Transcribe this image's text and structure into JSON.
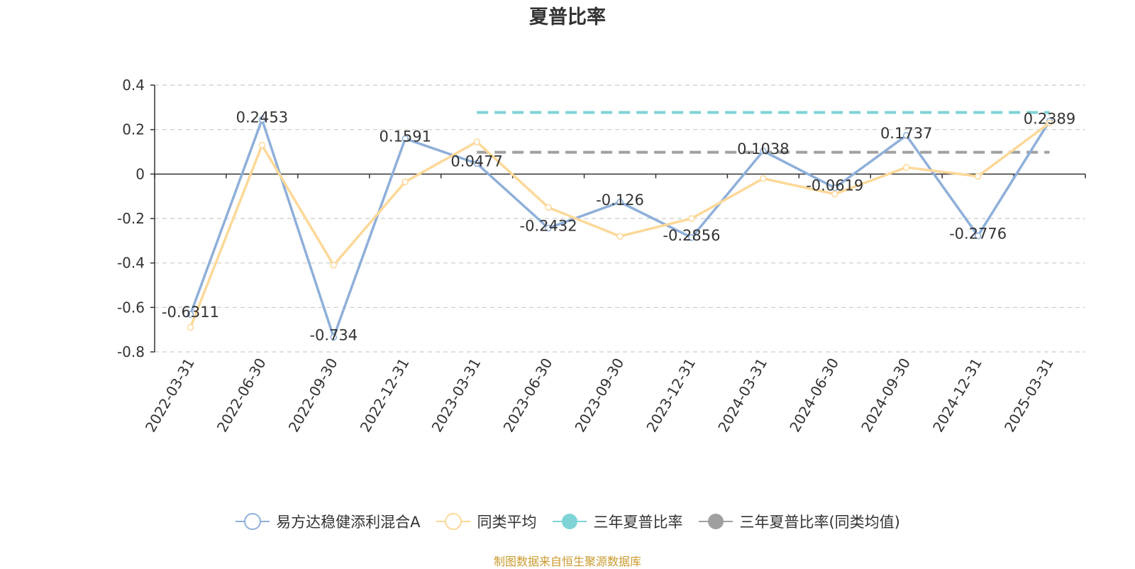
{
  "title": "夏普比率",
  "source": "制图数据来自恒生聚源数据库",
  "colors": {
    "fund": "#8eafd9",
    "peer": "#fcd898",
    "three_year": "#7ed3d6",
    "three_year_peer": "#a0a0a0",
    "grid": "#cccccc",
    "axis": "#333333",
    "text": "#333333",
    "source": "#c99a2e"
  },
  "legend": [
    {
      "label": "易方达稳健添利混合A",
      "color": "#8eafd9",
      "marker": "hollow-circle"
    },
    {
      "label": "同类平均",
      "color": "#fcd898",
      "marker": "hollow-circle"
    },
    {
      "label": "三年夏普比率",
      "color": "#7ed3d6",
      "marker": "filled-circle"
    },
    {
      "label": "三年夏普比率(同类均值)",
      "color": "#a0a0a0",
      "marker": "filled-circle"
    }
  ],
  "chart_data": {
    "type": "line",
    "categories": [
      "2022-03-31",
      "2022-06-30",
      "2022-09-30",
      "2022-12-31",
      "2023-03-31",
      "2023-06-30",
      "2023-09-30",
      "2023-12-31",
      "2024-03-31",
      "2024-06-30",
      "2024-09-30",
      "2024-12-31",
      "2025-03-31"
    ],
    "y_ticks": [
      "0.4",
      "0.2",
      "0",
      "-0.2",
      "-0.4",
      "-0.6",
      "-0.8"
    ],
    "ylim": [
      -0.8,
      0.4
    ],
    "grid": true,
    "legend_position": "bottom",
    "series": [
      {
        "name": "易方达稳健添利混合A",
        "values": [
          -0.6311,
          0.2453,
          -0.734,
          0.1591,
          0.0477,
          -0.2432,
          -0.126,
          -0.2856,
          0.1038,
          -0.0619,
          0.1737,
          -0.2776,
          0.2389
        ],
        "labels": [
          "-0.6311",
          "0.2453",
          "-0.734",
          "0.1591",
          "0.0477",
          "-0.2432",
          "-0.126",
          "-0.2856",
          "0.1038",
          "-0.0619",
          "0.1737",
          "-0.2776",
          "0.2389"
        ]
      },
      {
        "name": "同类平均",
        "values": [
          -0.69,
          0.13,
          -0.41,
          -0.035,
          0.145,
          -0.15,
          -0.28,
          -0.2,
          -0.02,
          -0.09,
          0.03,
          -0.01,
          0.23
        ]
      },
      {
        "name": "三年夏普比率",
        "dashed": true,
        "from_index": 4,
        "to_index": 12,
        "value": 0.277
      },
      {
        "name": "三年夏普比率(同类均值)",
        "dashed": true,
        "from_index": 4,
        "to_index": 12,
        "value": 0.098
      }
    ]
  }
}
